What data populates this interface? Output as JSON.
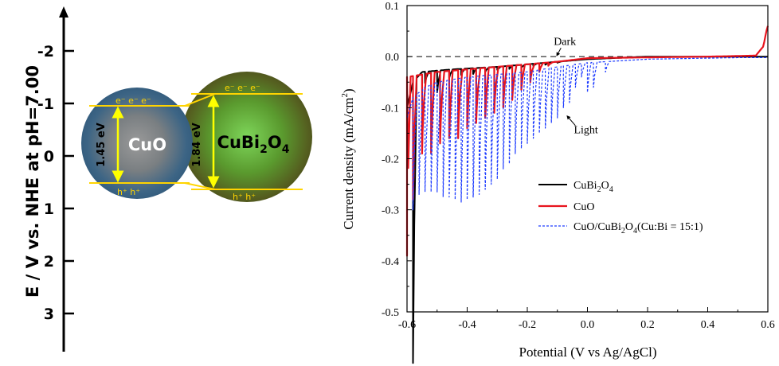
{
  "left_panel": {
    "axis_label": "E / V vs. NHE at pH=7.00",
    "ticks": [
      -2,
      -1,
      0,
      1,
      2,
      3
    ],
    "cuo": {
      "name": "CuO",
      "gap": "1.45 eV",
      "electrons": "e⁻ e⁻ e⁻",
      "holes": "h⁺ h⁺",
      "color": "#3d6585"
    },
    "cubi2o4": {
      "name_main": "CuBi",
      "sub1": "2",
      "name_mid": "O",
      "sub2": "4",
      "gap": "1.84 eV",
      "electrons": "e⁻ e⁻ e⁻",
      "holes": "h⁺ h⁺",
      "color": "#5a8a2e"
    },
    "level_color": "#ffd400",
    "arrow_color": "#ffff00"
  },
  "chart_data": {
    "type": "line",
    "xlabel": "Potential (V vs Ag/AgCl)",
    "ylabel": "Current density (mA/cm",
    "ylabel_sup": "2",
    "ylabel_end": ")",
    "xlim": [
      -0.6,
      0.6
    ],
    "ylim": [
      -0.5,
      0.1
    ],
    "xticks": [
      -0.6,
      -0.4,
      -0.2,
      0.0,
      0.2,
      0.4,
      0.6
    ],
    "yticks": [
      0.1,
      0.0,
      -0.1,
      -0.2,
      -0.3,
      -0.4,
      -0.5
    ],
    "annotations": [
      {
        "text": "Dark",
        "x": -0.075,
        "y": 0.023,
        "ax": -0.1,
        "ay": 0.0
      },
      {
        "text": "Light",
        "x": -0.005,
        "y": -0.15,
        "ax": -0.07,
        "ay": -0.13
      }
    ],
    "dark_line_y": 0.0,
    "series": [
      {
        "name_parts": [
          "CuBi",
          "2",
          "O",
          "4"
        ],
        "color": "#000000",
        "width": 2,
        "dash": "",
        "base": [
          [
            -0.6,
            -0.1
          ],
          [
            -0.58,
            -0.05
          ],
          [
            -0.55,
            -0.03
          ],
          [
            -0.45,
            -0.025
          ],
          [
            -0.3,
            -0.02
          ],
          [
            -0.2,
            -0.015
          ],
          [
            -0.1,
            -0.01
          ],
          [
            0.0,
            -0.005
          ],
          [
            0.2,
            0.0
          ],
          [
            0.55,
            0.0
          ],
          [
            0.6,
            0.0
          ]
        ],
        "pulses": [
          [
            -0.58,
            -0.6,
            -0.06
          ],
          [
            -0.54,
            -0.052,
            -0.05
          ],
          [
            -0.5,
            -0.07,
            -0.045
          ],
          [
            -0.46,
            -0.042,
            -0.04
          ],
          [
            -0.42,
            -0.036,
            -0.035
          ],
          [
            -0.38,
            -0.034,
            -0.032
          ],
          [
            -0.34,
            -0.03,
            -0.03
          ],
          [
            -0.3,
            -0.026,
            -0.025
          ],
          [
            -0.26,
            -0.024,
            -0.02
          ],
          [
            -0.22,
            -0.022,
            -0.02
          ],
          [
            -0.18,
            -0.018,
            -0.015
          ],
          [
            -0.14,
            -0.016,
            -0.012
          ],
          [
            -0.1,
            -0.012,
            -0.01
          ]
        ]
      },
      {
        "name": "CuO",
        "color": "#e8141e",
        "width": 2.2,
        "dash": "",
        "base": [
          [
            -0.6,
            -0.04
          ],
          [
            -0.5,
            -0.03
          ],
          [
            -0.3,
            -0.02
          ],
          [
            -0.1,
            -0.01
          ],
          [
            0.0,
            -0.003
          ],
          [
            0.4,
            0.0
          ],
          [
            0.56,
            0.002
          ],
          [
            0.585,
            0.02
          ],
          [
            0.595,
            0.05
          ],
          [
            0.6,
            0.06
          ]
        ],
        "pulses": [
          [
            -0.6,
            -0.39,
            -0.6
          ],
          [
            -0.58,
            -0.28,
            -0.05
          ],
          [
            -0.55,
            -0.19,
            -0.04
          ],
          [
            -0.52,
            -0.19,
            -0.035
          ],
          [
            -0.49,
            -0.17,
            -0.03
          ],
          [
            -0.46,
            -0.16,
            -0.025
          ],
          [
            -0.43,
            -0.16,
            -0.022
          ],
          [
            -0.4,
            -0.14,
            -0.02
          ],
          [
            -0.37,
            -0.13,
            -0.02
          ],
          [
            -0.34,
            -0.12,
            -0.018
          ],
          [
            -0.31,
            -0.11,
            -0.015
          ],
          [
            -0.28,
            -0.1,
            -0.012
          ],
          [
            -0.25,
            -0.085,
            -0.012
          ],
          [
            -0.22,
            -0.065,
            -0.01
          ],
          [
            -0.19,
            -0.05,
            -0.008
          ],
          [
            -0.16,
            -0.03,
            -0.006
          ],
          [
            -0.13,
            -0.018,
            -0.004
          ]
        ]
      },
      {
        "name_parts": [
          "CuO/CuBi",
          "2",
          "O",
          "4",
          "(Cu:Bi = 15:1)"
        ],
        "color": "#1e3cff",
        "width": 1.2,
        "dash": "3,2",
        "base": [
          [
            -0.6,
            -0.12
          ],
          [
            -0.58,
            -0.08
          ],
          [
            -0.54,
            -0.06
          ],
          [
            -0.5,
            -0.05
          ],
          [
            -0.4,
            -0.04
          ],
          [
            -0.3,
            -0.035
          ],
          [
            -0.2,
            -0.03
          ],
          [
            -0.1,
            -0.02
          ],
          [
            0.0,
            -0.012
          ],
          [
            0.2,
            -0.005
          ],
          [
            0.5,
            -0.002
          ],
          [
            0.6,
            -0.002
          ]
        ],
        "pulses": [
          [
            -0.58,
            -0.3,
            -0.1
          ],
          [
            -0.56,
            -0.27,
            -0.07
          ],
          [
            -0.54,
            -0.265,
            -0.06
          ],
          [
            -0.52,
            -0.265,
            -0.06
          ],
          [
            -0.5,
            -0.265,
            -0.055
          ],
          [
            -0.48,
            -0.275,
            -0.05
          ],
          [
            -0.46,
            -0.275,
            -0.05
          ],
          [
            -0.44,
            -0.28,
            -0.045
          ],
          [
            -0.42,
            -0.285,
            -0.045
          ],
          [
            -0.4,
            -0.28,
            -0.04
          ],
          [
            -0.38,
            -0.275,
            -0.04
          ],
          [
            -0.36,
            -0.27,
            -0.04
          ],
          [
            -0.34,
            -0.26,
            -0.035
          ],
          [
            -0.32,
            -0.25,
            -0.035
          ],
          [
            -0.3,
            -0.24,
            -0.035
          ],
          [
            -0.28,
            -0.22,
            -0.03
          ],
          [
            -0.26,
            -0.21,
            -0.03
          ],
          [
            -0.24,
            -0.19,
            -0.03
          ],
          [
            -0.22,
            -0.18,
            -0.03
          ],
          [
            -0.2,
            -0.17,
            -0.03
          ],
          [
            -0.18,
            -0.16,
            -0.025
          ],
          [
            -0.16,
            -0.15,
            -0.025
          ],
          [
            -0.14,
            -0.14,
            -0.02
          ],
          [
            -0.12,
            -0.13,
            -0.02
          ],
          [
            -0.1,
            -0.12,
            -0.02
          ],
          [
            -0.08,
            -0.1,
            -0.02
          ],
          [
            -0.06,
            -0.09,
            -0.015
          ],
          [
            -0.04,
            -0.06,
            -0.015
          ],
          [
            -0.02,
            -0.04,
            -0.012
          ],
          [
            0.0,
            -0.07,
            -0.012
          ],
          [
            0.02,
            -0.06,
            -0.01
          ],
          [
            0.06,
            -0.03,
            -0.008
          ]
        ]
      }
    ]
  },
  "legend": {
    "entries": [
      {
        "parts": [
          "CuBi",
          "2",
          "O",
          "4"
        ]
      },
      {
        "parts": [
          "CuO"
        ]
      },
      {
        "parts": [
          "CuO/CuBi",
          "2",
          "O",
          "4",
          "(Cu:Bi = 15:1)"
        ]
      }
    ]
  }
}
